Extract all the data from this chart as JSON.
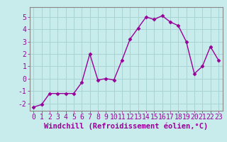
{
  "x": [
    0,
    1,
    2,
    3,
    4,
    5,
    6,
    7,
    8,
    9,
    10,
    11,
    12,
    13,
    14,
    15,
    16,
    17,
    18,
    19,
    20,
    21,
    22,
    23
  ],
  "y": [
    -2.3,
    -2.1,
    -1.2,
    -1.2,
    -1.2,
    -1.2,
    -0.3,
    2.0,
    -0.1,
    0.0,
    -0.1,
    1.5,
    3.2,
    4.1,
    5.0,
    4.8,
    5.1,
    4.6,
    4.3,
    3.0,
    0.4,
    1.0,
    2.6,
    1.5
  ],
  "line_color": "#990099",
  "marker": "D",
  "marker_size": 2.5,
  "bg_color": "#c8ecec",
  "grid_color": "#aad4d4",
  "xlabel": "Windchill (Refroidissement éolien,°C)",
  "ylim": [
    -2.6,
    5.8
  ],
  "xlim": [
    -0.5,
    23.5
  ],
  "yticks": [
    -2,
    -1,
    0,
    1,
    2,
    3,
    4,
    5
  ],
  "xticks": [
    0,
    1,
    2,
    3,
    4,
    5,
    6,
    7,
    8,
    9,
    10,
    11,
    12,
    13,
    14,
    15,
    16,
    17,
    18,
    19,
    20,
    21,
    22,
    23
  ],
  "tick_fontsize": 7,
  "xlabel_fontsize": 7.5,
  "line_width": 1.0,
  "spine_color": "#888888",
  "axis_label_color": "#990099",
  "tick_color": "#990099"
}
